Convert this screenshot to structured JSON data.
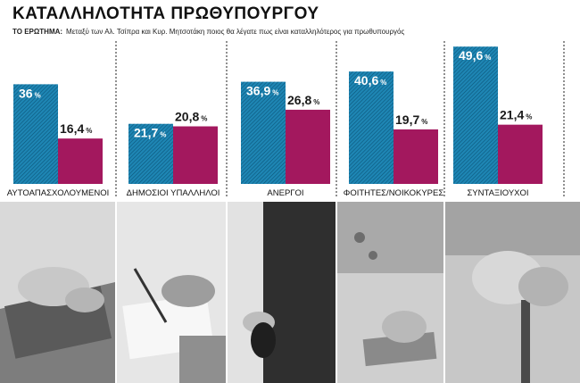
{
  "title": "ΚΑΤΑΛΛΗΛΟΤΗΤΑ ΠΡΩΘΥΠΟΥΡΓΟΥ",
  "question_label": "ΤΟ ΕΡΩΤΗΜΑ:",
  "question_text": "Μεταξύ των Αλ. Τσίπρα και Κυρ. Μητσοτάκη ποιος θα λέγατε πως είναι καταλληλότερος για πρωθυπουργός",
  "colors": {
    "series_a": "#1e86b4",
    "series_b": "#a3185e",
    "hatch": "#0b5579",
    "divider": "#222222"
  },
  "chart_data": {
    "type": "bar",
    "title": "ΚΑΤΑΛΛΗΛΟΤΗΤΑ ΠΡΩΘΥΠΟΥΡΓΟΥ",
    "categories": [
      "ΑΥΤΟΑΠΑΣΧΟΛΟΥΜΕΝΟΙ",
      "ΔΗΜΟΣΙΟΙ ΥΠΑΛΛΗΛΟΙ",
      "ΑΝΕΡΓΟΙ",
      "ΦΟΙΤΗΤΕΣ/ΝΟΙΚΟΚΥΡΕΣ",
      "ΣΥΝΤΑΞΙΟΥΧΟΙ"
    ],
    "series": [
      {
        "values": [
          36,
          21.7,
          36.9,
          40.6,
          49.6
        ],
        "labels": [
          "36",
          "21,7",
          "36,9",
          "40,6",
          "49,6"
        ]
      },
      {
        "values": [
          16.4,
          20.8,
          26.8,
          19.7,
          21.4
        ],
        "labels": [
          "16,4",
          "20,8",
          "26,8",
          "19,7",
          "21,4"
        ]
      }
    ],
    "unit": "%",
    "ylim": [
      0,
      50
    ],
    "grid": false,
    "legend": "none"
  },
  "photos": [
    "laptop-typing-photo",
    "hand-writing-photo",
    "empty-pockets-photo",
    "hand-cleaning-photo",
    "elderly-hands-cane-photo"
  ]
}
